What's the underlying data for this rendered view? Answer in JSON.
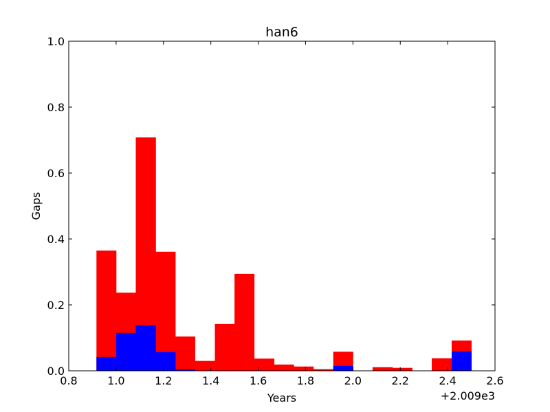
{
  "chart_data": {
    "type": "bar",
    "title": "han6",
    "xlabel": "Years",
    "ylabel": "Gaps",
    "x_offset_label": "+2.009e3",
    "xlim": [
      0.8,
      2.6
    ],
    "ylim": [
      0.0,
      1.0
    ],
    "x_ticks": [
      "0.8",
      "1.0",
      "1.2",
      "1.4",
      "1.6",
      "1.8",
      "2.0",
      "2.2",
      "2.4",
      "2.6"
    ],
    "y_ticks": [
      "0.0",
      "0.2",
      "0.4",
      "0.6",
      "0.8",
      "1.0"
    ],
    "grid": false,
    "bins": [
      [
        0.917,
        1.0
      ],
      [
        1.0,
        1.083
      ],
      [
        1.083,
        1.167
      ],
      [
        1.167,
        1.25
      ],
      [
        1.25,
        1.333
      ],
      [
        1.333,
        1.417
      ],
      [
        1.417,
        1.5
      ],
      [
        1.5,
        1.583
      ],
      [
        1.583,
        1.667
      ],
      [
        1.667,
        1.75
      ],
      [
        1.75,
        1.833
      ],
      [
        1.833,
        1.917
      ],
      [
        1.917,
        2.0
      ],
      [
        2.0,
        2.083
      ],
      [
        2.083,
        2.167
      ],
      [
        2.167,
        2.25
      ],
      [
        2.25,
        2.333
      ],
      [
        2.333,
        2.417
      ],
      [
        2.417,
        2.5
      ]
    ],
    "series": [
      {
        "color": "#ff0000",
        "values": [
          0.365,
          0.237,
          0.708,
          0.361,
          0.104,
          0.03,
          0.142,
          0.294,
          0.037,
          0.019,
          0.013,
          0.005,
          0.058,
          0.0,
          0.011,
          0.009,
          0.0,
          0.038,
          0.092
        ]
      },
      {
        "color": "#0000ff",
        "values": [
          0.042,
          0.115,
          0.138,
          0.057,
          0.004,
          0.0,
          0.0,
          0.0,
          0.0,
          0.0,
          0.0,
          0.0,
          0.015,
          0.0,
          0.0,
          0.0,
          0.0,
          0.0,
          0.059
        ]
      }
    ]
  }
}
